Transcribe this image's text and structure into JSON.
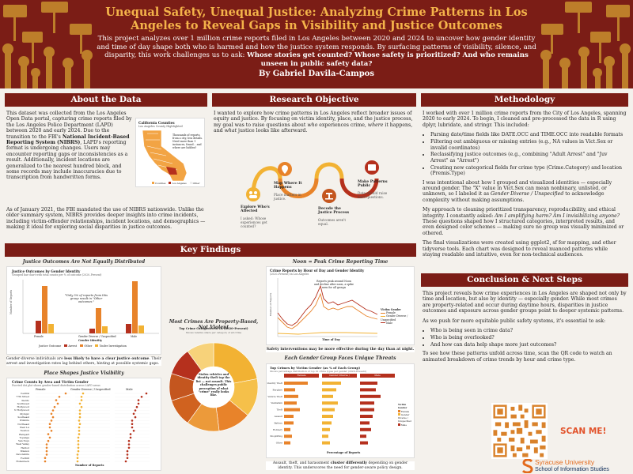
{
  "header": {
    "title": "Unequal Safety, Unequal Justice: Analyzing Crime Patterns in Los Angeles to Reveal Gaps in Visibility and Justice Outcomes",
    "subtitle_start": "This project analyzes over 1 million crime reports filed in Los Angeles between 2020 and 2024 to uncover how gender identity and time of day shape both who is harmed and how the justice system responds. By surfacing patterns of visibility, silence, and disparity, this work challenges us to ask: ",
    "subtitle_bold": "Whose stories get counted? Whose safety is prioritized? And who remains unseen in public safety data?",
    "author": "By Gabriel Davila-Campos"
  },
  "about": {
    "heading": "About the Data",
    "p1_a": "This dataset was collected from the Los Angeles Open Data portal, capturing crime reports filed by the Los Angeles Police Department (LAPD) between 2020 and early 2024. Due to the transition to the FBI's ",
    "p1_bold": "National Incident-Based Reporting System (NIBRS)",
    "p1_b": ", LAPD's reporting format is undergoing changes. Users may encounter reporting gaps or inconsistencies as a result. Additionally, incident locations are generalized to the nearest hundred block, and some records may include inaccuracies due to transcription from handwritten forms.",
    "p2": "As of January 2021, the FBI mandated the use of NIBRS nationwide. Unlike the older summary system, NIBRS provides deeper insights into crime incidents, including victim-offender relationships, incident locations, and demographics — making it ideal for exploring social disparities in justice outcomes.",
    "map_title": "California Counties",
    "map_sub": "Los Angeles County Highlighted",
    "map_note": "Thousands of reports, from a city, less details. Need more than 1 instances, found... and where are hidden?",
    "map_legend": [
      "Counties",
      "Los Angeles",
      "Other"
    ]
  },
  "research": {
    "heading": "Research Objective",
    "text_a": "I wanted to explore how crime patterns in Los Angeles reflect broader issues of equity and justice. By focusing on victim identity, place, and the justice process, my goal was to raise questions about ",
    "who": "who",
    "text_b": " experiences crime, ",
    "where": "where",
    "text_c": " it happens, and ",
    "what": "what",
    "text_d": " justice looks like afterward.",
    "steps": [
      {
        "title": "Explore Who's Affected",
        "desc": "I asked: Whose experiences get counted?"
      },
      {
        "title": "Map Where It Happens",
        "desc": "Place matters in justice."
      },
      {
        "title": "Decode the Justice Process",
        "desc": "Outcomes aren't equal."
      },
      {
        "title": "Make Patterns Public",
        "desc": "Data should raise hard questions."
      }
    ]
  },
  "methodology": {
    "heading": "Methodology",
    "intro": "I worked with over 1 million crime reports from the City of Los Angeles, spanning 2020 to early 2024. To begin, I cleaned and pre-processed the data in R using dplyr, lubridate, and stringr. This included:",
    "bullets": [
      "Parsing date/time fields like DATE.OCC and TIME.OCC into readable formats",
      "Filtering out ambiguous or missing entries (e.g., NA values in Vict.Sex or invalid coordinates)",
      "Reclassifying justice outcomes (e.g., combining \"Adult Arrest\" and \"Juv Arrest\" as \"Arrest\")",
      "Creating new categorical fields for crime type (Crime.Category) and location (Premis.Type)"
    ],
    "p2_a": "I was intentional about how I grouped and visualized identities — especially around gender. The \"X\" value in Vict.Sex can mean nonbinary, unlisted, or unknown, so I labeled it as ",
    "p2_em": "Gender Diverse / Unspecified",
    "p2_b": " to acknowledge complexity without making assumptions.",
    "p3_a": "My approach to cleaning prioritized transparency, reproducibility, and ethical integrity. I constantly asked: ",
    "p3_em": "Am I amplifying harm? Am I invisibilizing anyone?",
    "p3_b": " These questions shaped how I structured categories, interpreted results, and even designed color schemes — making sure no group was visually minimized or othered.",
    "p4": "The final visualizations were created using ggplot2, sf for mapping, and other tidyverse tools. Each chart was designed to reveal nuanced patterns while staying readable and intuitive, even for non-technical audiences."
  },
  "findings": {
    "heading": "Key Findings",
    "justice": {
      "title": "Justice Outcomes Are Not Equally Distributed",
      "chart_title": "Justice Outcomes by Gender Identity",
      "chart_sub": "Grouped bar chart with total counts per % of outcome (2020–Present)",
      "ylabel": "Number of Reports",
      "xlabel": "Gender Identity",
      "groups": [
        "Female",
        "Gender Diverse / Unspecified",
        "Male"
      ],
      "note": "*Only 5% of reports from this group result in \"Other outcomes.\"",
      "legend_title": "Justice Outcome",
      "legend": [
        "Arrest",
        "Other",
        "Under Investigation"
      ],
      "caption_a": "Gender-diverse individuals are ",
      "caption_bold": "less likely to have a clear justice outcome",
      "caption_b": ". Their arrest and investigation rates lag behind others, hinting at possible systemic gaps."
    },
    "property": {
      "title": "Most Crimes Are Property-Based, Not Violent",
      "chart_title": "Top Crime Categories in LA (2020–Present)",
      "chart_sub": "Shows relative share per category of all crime",
      "center_text": "Stolen vehicles and identity theft top the list — not assault. This challenges public perception of what \"crime\" really looks like.",
      "legend": [
        "Vehicle Theft",
        "Identity Theft",
        "Burglary",
        "Theft from Vehicle",
        "Battery",
        "Vandalism",
        "Assault",
        "Other"
      ]
    },
    "noon": {
      "title": "Noon = Peak Crime Reporting Time",
      "chart_title": "Crime Reports by Hour of Day and Gender Identity",
      "chart_sub": "(2020–Present) in Los Angeles",
      "annotation": "Reports peak around Noon and decline after noon, a spike seen for all groups",
      "ylabel": "Number of Reports",
      "xlabel": "Time of Day",
      "legend_title": "Victim Gender",
      "legend": [
        "Female",
        "Gender Diverse / Unspecified",
        "Male"
      ],
      "caption": "Safety interventions may be more effective during the day than at night."
    },
    "place": {
      "title": "Place Shapes Justice Visibility",
      "chart_title": "Crime Counts by Area and Victim Gender",
      "chart_sub": "Faceted dot plot shows gender-based distribution across LAPD areas",
      "facets": [
        "Female",
        "Gender Diverse / Unspecified",
        "Male"
      ],
      "ylabel": "LAPD Area",
      "xlabel": "Number of Reports",
      "areas": [
        "Central",
        "77th Street",
        "Pacific",
        "Southwest",
        "Hollywood",
        "N Hollywood",
        "Olympic",
        "Southeast",
        "Wilshire",
        "Northeast",
        "West LA",
        "Newton",
        "Rampart",
        "Topanga",
        "Van Nuys",
        "West Valley",
        "Harbor",
        "Mission",
        "Devonshire",
        "Foothill",
        "Hollenbeck"
      ],
      "legend_title": "Victim Gender",
      "legend": [
        "Female",
        "Gender Diverse / Unspecified",
        "Male"
      ]
    },
    "threats": {
      "title": "Each Gender Group Faces Unique Threats",
      "chart_title": "Top Crimes by Victim Gender (as % of Each Group)",
      "chart_sub": "Shows percentage distribution of top 10 crime types per gender (2020–Present)",
      "facets": [
        "Female",
        "Gender Diverse / Unspecified",
        "Male"
      ],
      "ylabel": "Crime Category",
      "xlabel": "Percentage of Reports",
      "categories": [
        "Identity Theft",
        "Burglary",
        "Vehicle Theft",
        "Vandalism",
        "Theft",
        "Assault",
        "Battery",
        "Robbery",
        "Shoplifting",
        "Other"
      ],
      "legend_title": "Victim Gender",
      "legend": [
        "Female",
        "Gender Diverse / Unspecified",
        "Male"
      ],
      "caption_a": "Assault, theft, and harassment ",
      "caption_bold": "cluster differently",
      "caption_b": " depending on gender identity. This underscores the need for gender-aware policy design."
    }
  },
  "conclusion": {
    "heading": "Conclusion & Next Steps",
    "p1": "This project reveals how crime experiences in Los Angeles are shaped not only by time and location, but also by identity — especially gender. While most crimes are property-related and occur during daytime hours, disparities in justice outcomes and exposure across gender groups point to deeper systemic patterns.",
    "p2": "As we push for more equitable public safety systems, it's essential to ask:",
    "bullets": [
      "Who is being seen in crime data?",
      "Who is being overlooked?",
      "And how can data help shape more just outcomes?"
    ],
    "p3": "To see how these patterns unfold across time, scan the QR code to watch an animated breakdown of crime trends by hour and crime type.",
    "scan": "SCAN ME!",
    "university": "Syracuse University",
    "school": "School of Information Studies"
  },
  "colors": {
    "maroon": "#7b1d16",
    "gold": "#f4b34a",
    "orange": "#e8832a",
    "female": "#e8832a",
    "diverse": "#f2b233",
    "male": "#b5301d"
  }
}
